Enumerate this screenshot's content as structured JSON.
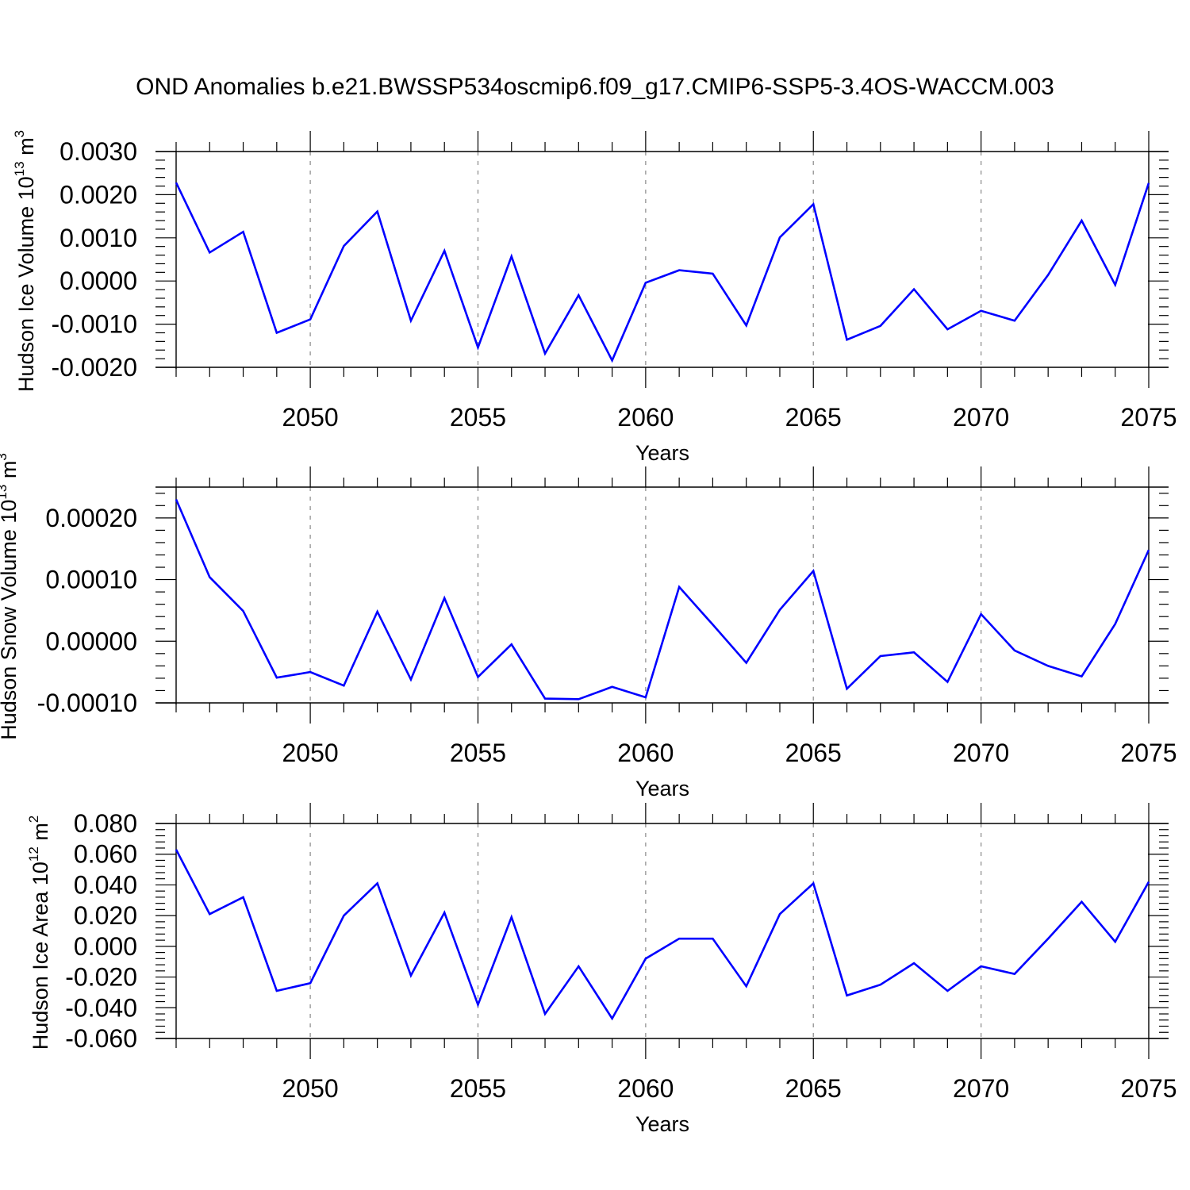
{
  "title": "OND Anomalies b.e21.BWSSP534oscmip6.f09_g17.CMIP6-SSP5-3.4OS-WACCM.003",
  "colors": {
    "line": "#0000ff",
    "axis": "#000000",
    "grid": "#999999"
  },
  "chart_data": [
    {
      "type": "line",
      "ylabel": {
        "main": "Hudson Ice Volume 10",
        "exp": "13",
        "unit": " m",
        "unit_exp": "3"
      },
      "xlabel": "Years",
      "xlim": [
        2046,
        2075
      ],
      "ylim": [
        -0.002,
        0.003
      ],
      "yticks": [
        -0.002,
        -0.001,
        0.0,
        0.001,
        0.002,
        0.003
      ],
      "ytick_labels": [
        "-0.0020",
        "-0.0010",
        "0.0000",
        "0.0010",
        "0.0020",
        "0.0030"
      ],
      "xticks": [
        2050,
        2055,
        2060,
        2065,
        2070,
        2075
      ],
      "xtick_labels": [
        "2050",
        "2055",
        "2060",
        "2065",
        "2070",
        "2075"
      ],
      "x": [
        2046,
        2047,
        2048,
        2049,
        2050,
        2051,
        2052,
        2053,
        2054,
        2055,
        2056,
        2057,
        2058,
        2059,
        2060,
        2061,
        2062,
        2063,
        2064,
        2065,
        2066,
        2067,
        2068,
        2069,
        2070,
        2071,
        2072,
        2073,
        2074,
        2075
      ],
      "series": [
        {
          "values": [
            0.00228,
            0.00066,
            0.00114,
            -0.0012,
            -0.00089,
            0.00081,
            0.00161,
            -0.00092,
            0.0007,
            -0.00154,
            0.00057,
            -0.00168,
            -0.00033,
            -0.00184,
            -4e-05,
            0.00025,
            0.00017,
            -0.00103,
            0.00101,
            0.00178,
            -0.00136,
            -0.00104,
            -0.00019,
            -0.00112,
            -0.00069,
            -0.00092,
            0.00014,
            0.0014,
            -9e-05,
            0.00227
          ]
        }
      ]
    },
    {
      "type": "line",
      "ylabel": {
        "main": "Hudson Snow Volume 10",
        "exp": "13",
        "unit": " m",
        "unit_exp": "3"
      },
      "xlabel": "Years",
      "xlim": [
        2046,
        2075
      ],
      "ylim": [
        -0.0001,
        0.00025
      ],
      "yticks": [
        -0.0001,
        0.0,
        0.0001,
        0.0002
      ],
      "ytick_labels": [
        "-0.00010",
        "0.00000",
        "0.00010",
        "0.00020"
      ],
      "xticks": [
        2050,
        2055,
        2060,
        2065,
        2070,
        2075
      ],
      "xtick_labels": [
        "2050",
        "2055",
        "2060",
        "2065",
        "2070",
        "2075"
      ],
      "x": [
        2046,
        2047,
        2048,
        2049,
        2050,
        2051,
        2052,
        2053,
        2054,
        2055,
        2056,
        2057,
        2058,
        2059,
        2060,
        2061,
        2062,
        2063,
        2064,
        2065,
        2066,
        2067,
        2068,
        2069,
        2070,
        2071,
        2072,
        2073,
        2074,
        2075
      ],
      "series": [
        {
          "values": [
            0.00023,
            0.000104,
            4.9e-05,
            -5.9e-05,
            -5e-05,
            -7.2e-05,
            4.8e-05,
            -6.2e-05,
            7e-05,
            -5.8e-05,
            -5e-06,
            -9.3e-05,
            -9.4e-05,
            -7.4e-05,
            -9.1e-05,
            8.8e-05,
            2.7e-05,
            -3.5e-05,
            5.1e-05,
            0.000114,
            -7.7e-05,
            -2.4e-05,
            -1.8e-05,
            -6.6e-05,
            4.4e-05,
            -1.5e-05,
            -4e-05,
            -5.7e-05,
            2.8e-05,
            0.000148
          ]
        }
      ]
    },
    {
      "type": "line",
      "ylabel": {
        "main": "Hudson Ice Area 10",
        "exp": "12",
        "unit": " m",
        "unit_exp": "2"
      },
      "xlabel": "Years",
      "xlim": [
        2046,
        2075
      ],
      "ylim": [
        -0.06,
        0.08
      ],
      "yticks": [
        -0.06,
        -0.04,
        -0.02,
        0.0,
        0.02,
        0.04,
        0.06,
        0.08
      ],
      "ytick_labels": [
        "-0.060",
        "-0.040",
        "-0.020",
        "0.000",
        "0.020",
        "0.040",
        "0.060",
        "0.080"
      ],
      "xticks": [
        2050,
        2055,
        2060,
        2065,
        2070,
        2075
      ],
      "xtick_labels": [
        "2050",
        "2055",
        "2060",
        "2065",
        "2070",
        "2075"
      ],
      "x": [
        2046,
        2047,
        2048,
        2049,
        2050,
        2051,
        2052,
        2053,
        2054,
        2055,
        2056,
        2057,
        2058,
        2059,
        2060,
        2061,
        2062,
        2063,
        2064,
        2065,
        2066,
        2067,
        2068,
        2069,
        2070,
        2071,
        2072,
        2073,
        2074,
        2075
      ],
      "series": [
        {
          "values": [
            0.063,
            0.021,
            0.032,
            -0.029,
            -0.024,
            0.02,
            0.041,
            -0.019,
            0.022,
            -0.038,
            0.019,
            -0.044,
            -0.013,
            -0.047,
            -0.008,
            0.005,
            0.005,
            -0.026,
            0.021,
            0.041,
            -0.032,
            -0.025,
            -0.011,
            -0.029,
            -0.013,
            -0.018,
            0.005,
            0.029,
            0.003,
            0.042
          ]
        }
      ]
    }
  ]
}
